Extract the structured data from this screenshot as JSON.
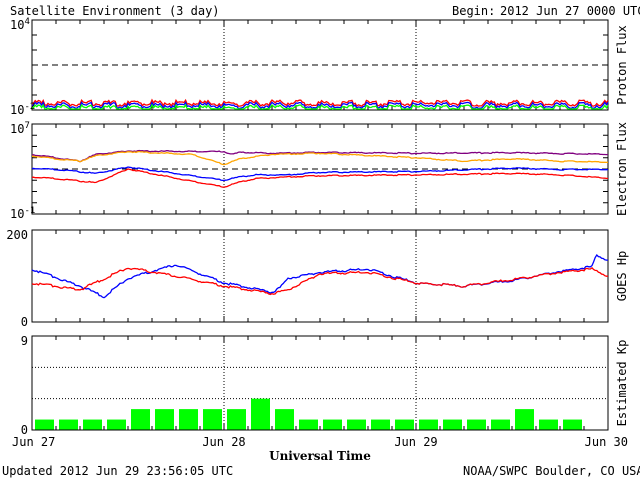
{
  "header": {
    "title": "Satellite Environment (3 day)",
    "begin_label": "Begin:",
    "begin_value": "2012 Jun 27 0000 UTC"
  },
  "footer": {
    "updated": "Updated 2012 Jun 29 23:56:05 UTC",
    "credit": "NOAA/SWPC Boulder, CO USA"
  },
  "colors": {
    "red": "#ff0000",
    "blue": "#0000ff",
    "green": "#00ff00",
    "purple": "#800080",
    "orange": "#ffa500",
    "axis": "#000000"
  },
  "chart_data": [
    {
      "name": "proton_flux",
      "type": "line",
      "ylabel": "Proton Flux",
      "y_scale": "log",
      "ylim": [
        0.01,
        10000
      ],
      "ytick_labels": {
        "top": "10",
        "top_exp": "4",
        "bottom": "10",
        "bottom_exp": "-2"
      },
      "threshold": 10,
      "series": [
        {
          "color": "red",
          "values": [
            0.028,
            0.029,
            0.028,
            0.03,
            0.029,
            0.028,
            0.03,
            0.029,
            0.028,
            0.029,
            0.03,
            0.028,
            0.029,
            0.03,
            0.028
          ]
        },
        {
          "color": "blue",
          "values": [
            0.021,
            0.02,
            0.021,
            0.02,
            0.021,
            0.02,
            0.021,
            0.02,
            0.021,
            0.02,
            0.021,
            0.02,
            0.021,
            0.02,
            0.021
          ]
        },
        {
          "color": "green",
          "values": [
            0.014,
            0.014,
            0.013,
            0.014,
            0.014,
            0.013,
            0.014,
            0.014,
            0.013,
            0.014,
            0.014,
            0.013,
            0.014,
            0.014,
            0.013
          ]
        }
      ]
    },
    {
      "name": "electron_flux",
      "type": "line",
      "ylabel": "Electron Flux",
      "y_scale": "log",
      "ylim": [
        0.1,
        10000000
      ],
      "ytick_labels": {
        "top": "10",
        "top_exp": "7",
        "bottom": "10",
        "bottom_exp": "-1"
      },
      "threshold": 1000,
      "series": [
        {
          "color": "purple",
          "x": [
            0,
            3,
            6,
            8,
            12,
            24,
            25,
            26,
            30,
            36,
            48,
            60,
            72
          ],
          "values": [
            20000,
            10000,
            5000,
            20000,
            40000,
            35000,
            20000,
            30000,
            25000,
            30000,
            25000,
            28000,
            20000
          ]
        },
        {
          "color": "orange",
          "x": [
            0,
            3,
            6,
            8,
            12,
            20,
            24,
            26,
            30,
            36,
            48,
            54,
            60,
            66,
            72
          ],
          "values": [
            15000,
            8000,
            5000,
            15000,
            35000,
            20000,
            2500,
            8000,
            20000,
            25000,
            10000,
            5000,
            8000,
            5000,
            4000
          ]
        },
        {
          "color": "blue",
          "x": [
            0,
            4,
            8,
            12,
            18,
            24,
            26,
            28,
            32,
            36,
            48,
            60,
            66,
            72
          ],
          "values": [
            1200,
            800,
            400,
            1500,
            400,
            100,
            200,
            300,
            300,
            500,
            600,
            1200,
            900,
            900
          ]
        },
        {
          "color": "red",
          "x": [
            0,
            4,
            8,
            12,
            18,
            24,
            26,
            28,
            32,
            36,
            48,
            60,
            66,
            72
          ],
          "values": [
            200,
            120,
            60,
            1000,
            150,
            25,
            70,
            140,
            200,
            250,
            300,
            400,
            300,
            150
          ]
        }
      ]
    },
    {
      "name": "goes_hp",
      "type": "line",
      "ylabel": "GOES Hp",
      "ylim": [
        0,
        200
      ],
      "ytick_labels": {
        "top": "200",
        "bottom": "0"
      },
      "series": [
        {
          "color": "blue",
          "x": [
            0,
            6,
            9,
            12,
            18,
            24,
            30,
            30.5,
            31,
            32,
            36,
            42,
            48,
            54,
            60,
            66,
            70,
            70.5,
            72
          ],
          "values": [
            115,
            78,
            55,
            95,
            125,
            85,
            65,
            70,
            75,
            95,
            108,
            115,
            85,
            78,
            90,
            110,
            120,
            145,
            135
          ]
        },
        {
          "color": "red",
          "x": [
            0,
            6,
            12,
            18,
            24,
            30,
            32,
            36,
            42,
            48,
            54,
            60,
            66,
            70,
            72
          ],
          "values": [
            85,
            70,
            118,
            100,
            78,
            62,
            70,
            105,
            108,
            85,
            78,
            92,
            108,
            115,
            100
          ]
        }
      ]
    },
    {
      "name": "estimated_kp",
      "type": "bar",
      "ylabel": "Estimated Kp",
      "ylim": [
        0,
        9
      ],
      "ytick_labels": {
        "top": "9",
        "bottom": "0"
      },
      "bar_hours": 3,
      "values": [
        1,
        1,
        1,
        1,
        2,
        2,
        2,
        2,
        2,
        3,
        2,
        1,
        1,
        1,
        1,
        1,
        1,
        1,
        1,
        1,
        2,
        1,
        1,
        0
      ]
    }
  ],
  "xaxis": {
    "title": "Universal Time",
    "hours": 72,
    "labels": [
      "Jun 27",
      "Jun 28",
      "Jun 29",
      "Jun 30"
    ]
  }
}
